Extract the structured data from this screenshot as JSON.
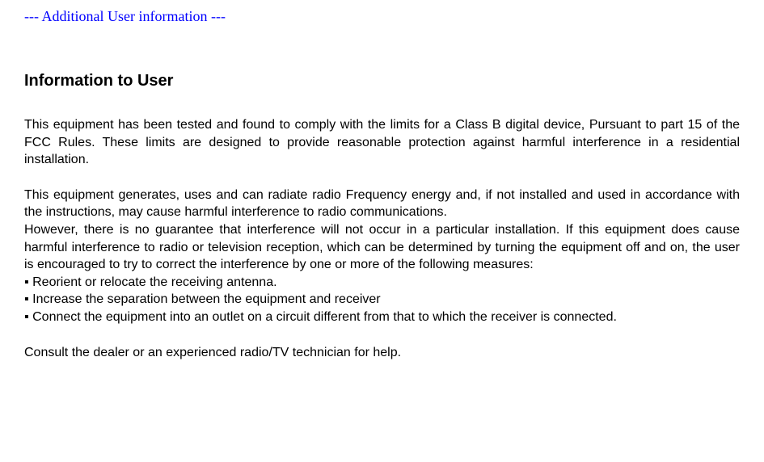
{
  "header": {
    "text": "--- Additional User information ---",
    "color": "#0000ff",
    "font_family": "Times New Roman",
    "font_size": 18
  },
  "title": {
    "text": "Information to User",
    "font_size": 20,
    "font_weight": "bold"
  },
  "body": {
    "font_size": 16,
    "text_color": "#000000",
    "background_color": "#ffffff",
    "p1": "This equipment has been tested and found to comply with the limits for a Class B digital device, Pursuant to part 15 of the FCC Rules. These limits are designed to provide reasonable protection against harmful interference in a residential installation.",
    "p2a": "This equipment generates, uses and can radiate radio Frequency energy and, if not installed and used in accordance with the instructions, may cause harmful interference to radio communications.",
    "p2b": "However, there is no guarantee that interference will not occur in a particular installation. If this equipment does cause harmful interference to radio or television reception, which can be determined by turning the equipment off and on, the user is encouraged to try to correct the interference by one or more of the following measures:",
    "bullets": {
      "marker": "▪ ",
      "items": [
        "Reorient or relocate the receiving antenna.",
        "Increase the separation between the equipment and receiver",
        "Connect the equipment into an outlet on a circuit different from that to which the receiver is connected."
      ]
    },
    "closing": "Consult the dealer or an experienced radio/TV technician for help."
  }
}
